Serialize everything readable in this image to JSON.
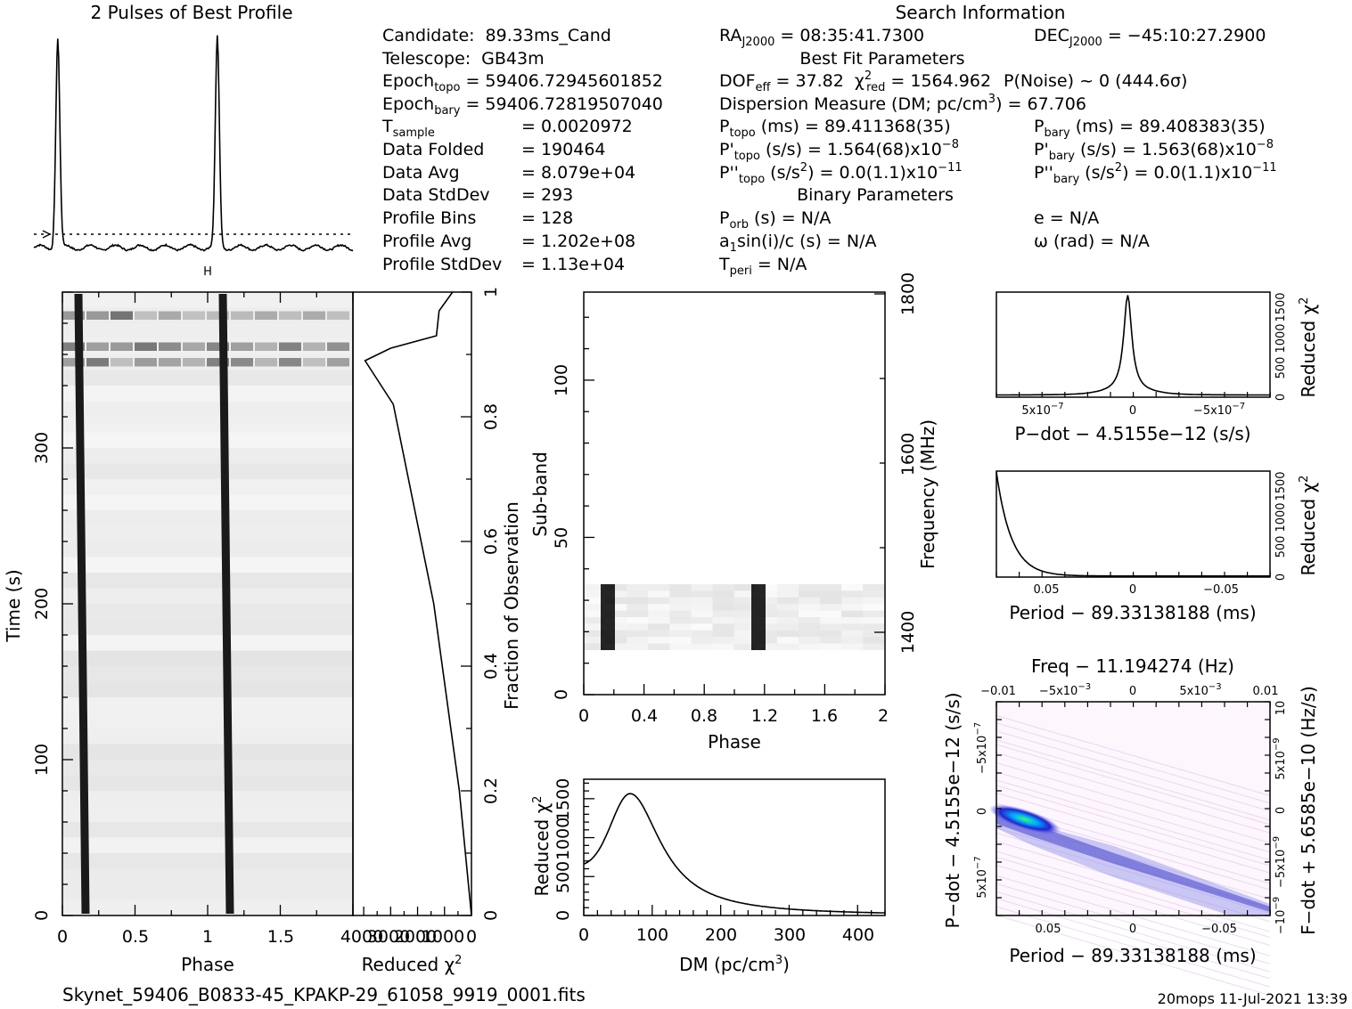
{
  "header": {
    "profile_title": "2 Pulses of Best Profile",
    "search_title": "Search Information",
    "best_fit_title": "Best Fit Parameters",
    "binary_title": "Binary Parameters",
    "filename": "Skynet_59406_B0833-45_KPAKP-29_61058_9919_0001.fits",
    "footer_right": "20mops  11-Jul-2021 13:39"
  },
  "info_left": [
    {
      "label": "Candidate:",
      "value": "89.33ms_Cand"
    },
    {
      "label": "Telescope:",
      "value": "GB43m"
    },
    {
      "label": "Epoch",
      "sub": "topo",
      "value": "= 59406.72945601852"
    },
    {
      "label": "Epoch",
      "sub": "bary",
      "value": "= 59406.72819507040"
    },
    {
      "label": "T",
      "sub": "sample",
      "value": "=   0.0020972"
    },
    {
      "label": "Data Folded",
      "value": "=   190464"
    },
    {
      "label": "Data Avg",
      "value": "=   8.079e+04"
    },
    {
      "label": "Data StdDev",
      "value": "=   293"
    },
    {
      "label": "Profile Bins",
      "value": "=   128"
    },
    {
      "label": "Profile Avg",
      "value": "=   1.202e+08"
    },
    {
      "label": "Profile StdDev",
      "value": "=   1.13e+04"
    }
  ],
  "info_right": {
    "ra_label": "RA",
    "ra_sub": "J2000",
    "ra_value": "= 08:35:41.7300",
    "dec_label": "DEC",
    "dec_sub": "J2000",
    "dec_value": "= −45:10:27.2900",
    "dof_label": "DOF",
    "dof_sub": "eff",
    "dof_value": "= 37.82",
    "chi_label": "χ",
    "chi_sup": "2",
    "chi_sub": "red",
    "chi_value": "= 1564.962",
    "noise": "P(Noise) ~ 0    (444.6σ)",
    "dm": "Dispersion Measure (DM; pc/cm",
    "dm_sup": "3",
    "dm_tail": ") = 67.706",
    "p_topo": "(ms)  =  89.411368(35)",
    "p_bary": "(ms)  =  89.408383(35)",
    "pd_topo": "(s/s) =  1.564(68)x10",
    "pd_topo_exp": "−8",
    "pd_bary": "(s/s) =  1.563(68)x10",
    "pd_bary_exp": "−8",
    "pdd_topo": "(s/s",
    "pdd_topo_tail": ") = 0.0(1.1)x10",
    "pdd_topo_exp": "−11",
    "pdd_bary": "(s/s",
    "pdd_bary_tail": ") = 0.0(1.1)x10",
    "pdd_bary_exp": "−11",
    "porb": "(s) = N/A",
    "ecc": "e = N/A",
    "a1sini": "a",
    "a1sini_tail": "sin(i)/c (s) = N/A",
    "omega": "ω (rad) = N/A",
    "tperi": "= N/A"
  },
  "chart_data": [
    {
      "name": "pulse_profile",
      "type": "line",
      "title": "2 Pulses of Best Profile",
      "x_range": [
        0,
        2
      ],
      "peaks_phase": [
        0.15,
        1.15
      ],
      "baseline_note": "dotted line marks profile average"
    },
    {
      "name": "time_phase",
      "type": "heatmap",
      "xlabel": "Phase",
      "ylabel": "Time (s)",
      "xlim": [
        0,
        2
      ],
      "ylim": [
        0,
        400
      ],
      "xticks": [
        "0",
        "0.5",
        "1",
        "1.5"
      ],
      "yticks": [
        "0",
        "100",
        "200",
        "300"
      ],
      "pulse_phase_start": 0.12,
      "pulse_phase_end": 0.15
    },
    {
      "name": "chi2_vs_time",
      "type": "line",
      "xlabel": "Reduced χ",
      "xlabel_sup": "2",
      "ylabel": "Fraction of Observation",
      "xticks": [
        "4000",
        "3000",
        "2000",
        "1000",
        "0"
      ],
      "yticks": [
        "0",
        "0.2",
        "0.4",
        "0.6",
        "0.8",
        "1"
      ],
      "x": [
        4000,
        3000,
        2000,
        1000,
        0
      ],
      "points": [
        [
          0,
          0.0
        ],
        [
          450,
          0.2
        ],
        [
          1400,
          0.5
        ],
        [
          2900,
          0.82
        ],
        [
          3950,
          0.89
        ],
        [
          3000,
          0.91
        ],
        [
          1300,
          0.93
        ],
        [
          1200,
          0.97
        ],
        [
          700,
          1.0
        ]
      ]
    },
    {
      "name": "subband_phase",
      "type": "heatmap",
      "xlabel": "Phase",
      "ylabel": "Sub-band",
      "ylabel_right": "Frequency (MHz)",
      "xlim": [
        0,
        2
      ],
      "ylim": [
        0,
        128
      ],
      "xticks": [
        "0",
        "0.4",
        "0.8",
        "1.2",
        "1.6",
        "2"
      ],
      "yticks": [
        "0",
        "50",
        "100"
      ],
      "freq_ticks": [
        "1400",
        "1600",
        "1800"
      ],
      "signal_subbands": [
        14,
        34
      ]
    },
    {
      "name": "dm_curve",
      "type": "line",
      "xlabel": "DM (pc/cm",
      "xlabel_sup": "3",
      "xlabel_tail": ")",
      "ylabel": "Reduced χ",
      "ylabel_sup": "2",
      "xlim": [
        0,
        440
      ],
      "ylim": [
        0,
        1750
      ],
      "xticks": [
        "0",
        "100",
        "200",
        "300",
        "400"
      ],
      "yticks": [
        "0",
        "500",
        "1000",
        "1500"
      ],
      "peak_dm": 67.706,
      "peak_chi2": 1564.962
    },
    {
      "name": "pdot_curve",
      "type": "line",
      "xlabel": "P−dot − 4.5155e−12 (s/s)",
      "ylabel": "Reduced χ",
      "ylabel_sup": "2",
      "xticks": [
        "5x10",
        "0",
        "−5x10"
      ],
      "xtick_exp": "−7",
      "yticks": [
        "0",
        "500",
        "1000",
        "1500"
      ]
    },
    {
      "name": "period_curve",
      "type": "line",
      "xlabel": "Period − 89.33138188 (ms)",
      "ylabel": "Reduced χ",
      "ylabel_sup": "2",
      "xticks": [
        "0.05",
        "0",
        "−0.05"
      ],
      "yticks": [
        "0",
        "500",
        "1000",
        "1500"
      ]
    },
    {
      "name": "period_pdot_plane",
      "type": "heatmap",
      "title": "Freq − 11.194274 (Hz)",
      "xlabel": "Period − 89.33138188 (ms)",
      "ylabel": "P−dot − 4.5155e−12 (s/s)",
      "ylabel_right": "F−dot + 5.6585e−10 (Hz/s)",
      "top_ticks": [
        "−0.01",
        "−5x10",
        "0",
        "5x10",
        "0.01"
      ],
      "top_exp": "−3",
      "bottom_ticks": [
        "0.05",
        "0",
        "−0.05"
      ],
      "left_ticks": [
        "5x10",
        "0",
        "−5x10"
      ],
      "left_exp": "−7",
      "right_ticks": [
        "−10",
        "−5x10",
        "0",
        "5x10",
        "10"
      ],
      "right_exp": "−9"
    }
  ]
}
